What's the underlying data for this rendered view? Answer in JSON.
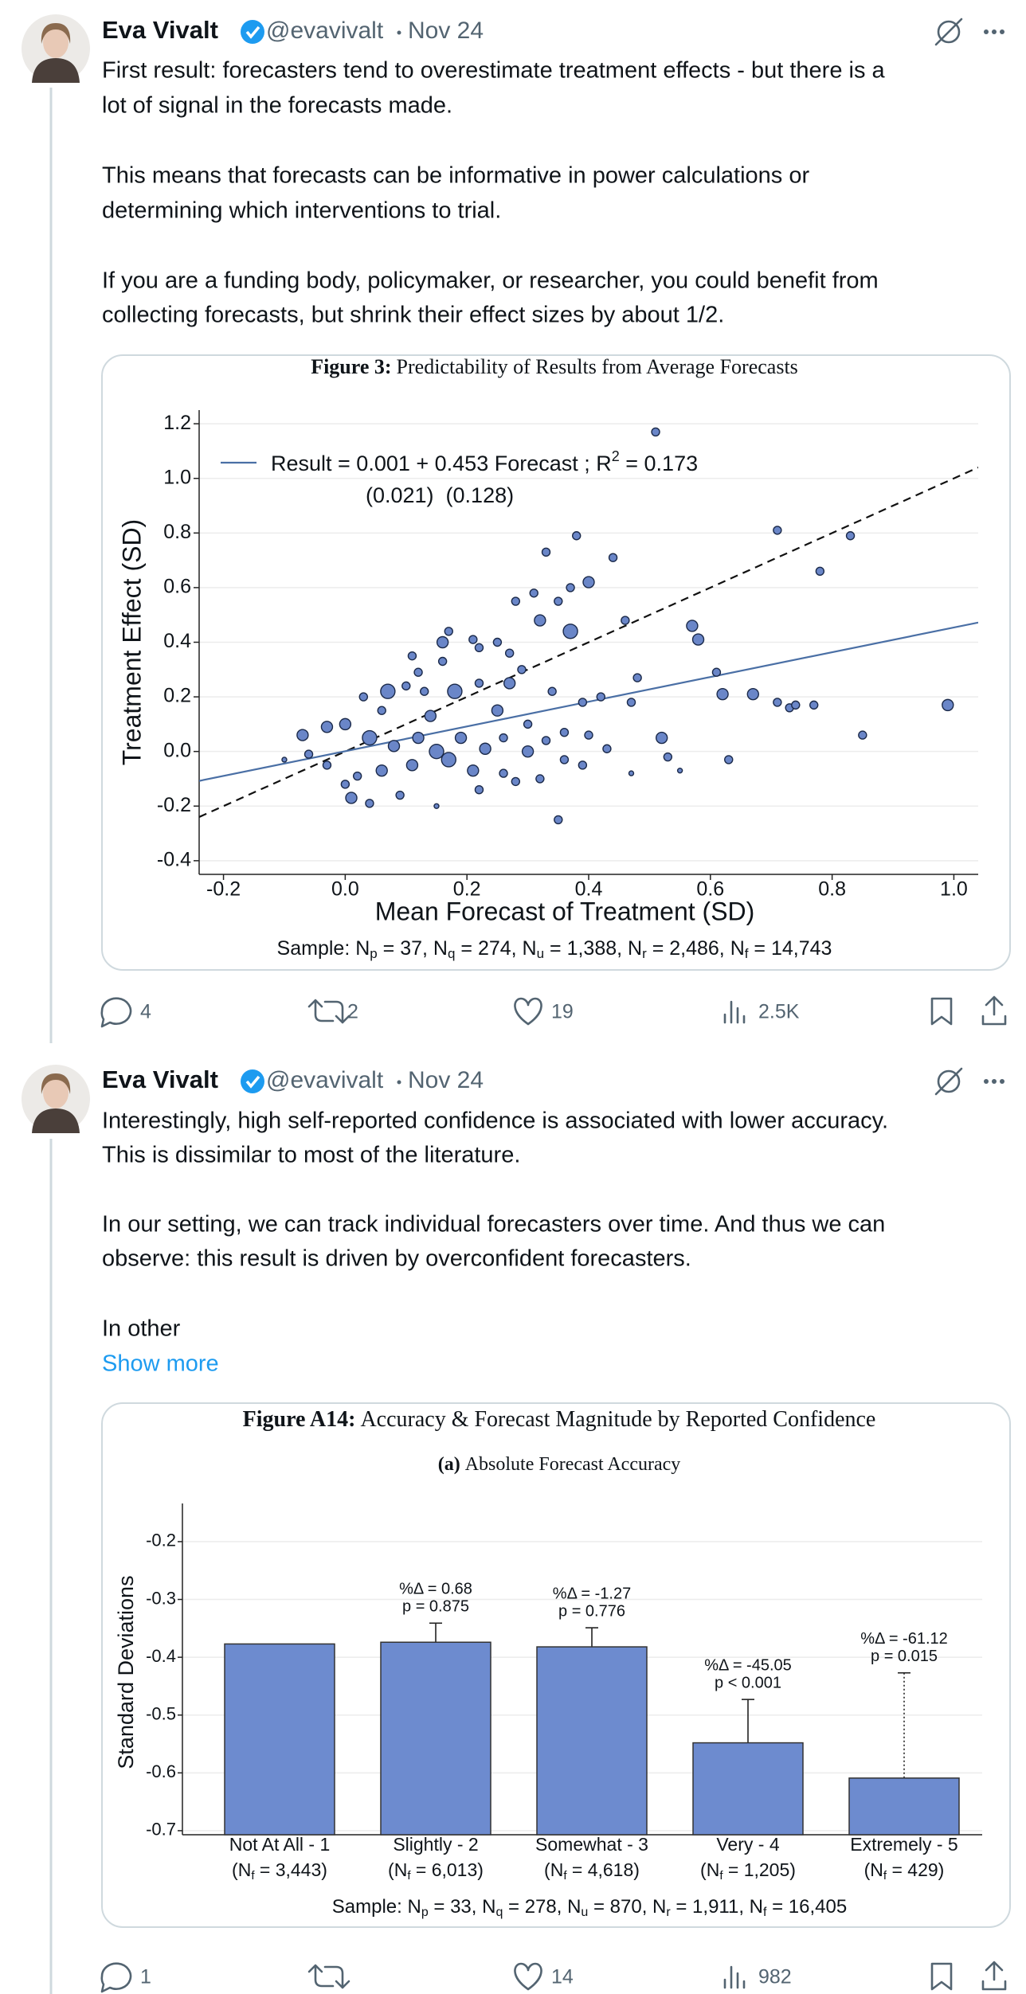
{
  "tweets": [
    {
      "name": "Eva Vivalt",
      "handle": "@evavivalt",
      "date": "Nov 24",
      "text_lines": [
        "First result: forecasters tend to overestimate treatment effects - but there is a",
        "lot of signal in the forecasts made.",
        "This means that forecasts can be informative in power calculations or",
        "determining which interventions to trial.",
        "If you are a funding body, policymaker, or researcher, you could benefit from",
        "collecting forecasts, but shrink their effect sizes by about 1/2."
      ],
      "stats": {
        "replies": 4,
        "retweets": 2,
        "likes": 19,
        "views": "2.5K"
      }
    },
    {
      "name": "Eva Vivalt",
      "handle": "@evavivalt",
      "date": "Nov 24",
      "text_lines": [
        "Interestingly, high self-reported confidence is associated with lower accuracy.",
        "This is dissimilar to most of the literature.",
        "In our setting, we can track individual forecasters over time. And thus we can",
        "observe: this result is driven by overconfident forecasters.",
        "In other"
      ],
      "show_more": "Show more",
      "stats": {
        "replies": 1,
        "likes": 14,
        "views": 982
      }
    }
  ],
  "chart_data": [
    {
      "type": "scatter",
      "title_label": "Figure 3:",
      "title": "Predictability of Results from Average Forecasts",
      "x_label": "Mean Forecast of Treatment (SD)",
      "y_label": "Treatment Effect (SD)",
      "annotation_line1": [
        "Result = 0.001 + 0.453 Forecast ; R",
        "2",
        " = 0.173"
      ],
      "annotation_line2": "(0.021)  (0.128)",
      "sample": [
        "Sample: N",
        "p",
        " = 37, N",
        "q",
        " = 274, N",
        "u",
        " = 1,388, N",
        "r",
        " = 2,486, N",
        "f",
        " = 14,743"
      ],
      "fit_line": {
        "intercept": 0.001,
        "slope": 0.453,
        "color": "#4a6fa5"
      },
      "reference_line": {
        "intercept": 0,
        "slope": 1,
        "color": "#111111"
      },
      "color": "#6a86c8",
      "xlim": [
        -0.24,
        1.04
      ],
      "ylim": [
        -0.45,
        1.25
      ],
      "xticks": [
        -0.2,
        {
          "value": 0,
          "label": "0.0"
        },
        0.2,
        0.4,
        0.6,
        0.8,
        {
          "value": 1,
          "label": "1.0"
        }
      ],
      "yticks": [
        -0.4,
        -0.2,
        {
          "value": 0,
          "label": "0.0"
        },
        0.2,
        0.4,
        0.6,
        0.8,
        {
          "value": 1,
          "label": "1.0"
        },
        1.2
      ],
      "grid": true,
      "x": [
        0.51,
        0.33,
        0.38,
        0.44,
        0.71,
        0.83,
        0.78,
        0.4,
        0.31,
        0.35,
        0.28,
        0.37,
        0.32,
        0.37,
        0.46,
        0.57,
        0.58,
        0.17,
        0.16,
        0.22,
        0.21,
        0.25,
        0.27,
        0.29,
        0.16,
        0.11,
        0.12,
        0.1,
        0.07,
        0.13,
        0.18,
        0.22,
        0.27,
        0.34,
        0.39,
        0.42,
        0.47,
        0.48,
        0.61,
        0.62,
        0.67,
        0.71,
        0.73,
        0.74,
        0.77,
        0.99,
        0.85,
        0.03,
        0.06,
        -0.03,
        -0.07,
        0.0,
        0.04,
        0.08,
        0.12,
        0.15,
        0.19,
        0.23,
        0.26,
        0.3,
        0.33,
        0.36,
        0.4,
        0.43,
        0.52,
        0.53,
        0.63,
        0.55,
        0.47,
        0.39,
        0.32,
        0.26,
        0.21,
        0.17,
        0.11,
        0.06,
        0.02,
        -0.03,
        -0.1,
        -0.06,
        0.0,
        0.01,
        0.04,
        0.09,
        0.15,
        0.22,
        0.28,
        0.35,
        0.14,
        0.25,
        0.3,
        0.36
      ],
      "values": [
        1.17,
        0.73,
        0.79,
        0.71,
        0.81,
        0.79,
        0.66,
        0.62,
        0.58,
        0.55,
        0.55,
        0.6,
        0.48,
        0.44,
        0.48,
        0.46,
        0.41,
        0.44,
        0.4,
        0.38,
        0.41,
        0.4,
        0.36,
        0.3,
        0.33,
        0.35,
        0.29,
        0.24,
        0.22,
        0.22,
        0.22,
        0.25,
        0.25,
        0.22,
        0.18,
        0.2,
        0.18,
        0.27,
        0.29,
        0.21,
        0.21,
        0.18,
        0.16,
        0.17,
        0.17,
        0.17,
        0.06,
        0.2,
        0.15,
        0.09,
        0.06,
        0.1,
        0.05,
        0.02,
        0.05,
        0.0,
        0.05,
        0.01,
        0.05,
        0.0,
        0.04,
        -0.03,
        0.06,
        0.01,
        0.05,
        -0.02,
        -0.03,
        -0.07,
        -0.08,
        -0.05,
        -0.1,
        -0.08,
        -0.07,
        -0.03,
        -0.05,
        -0.07,
        -0.09,
        -0.05,
        -0.03,
        -0.01,
        -0.12,
        -0.17,
        -0.19,
        -0.16,
        -0.2,
        -0.14,
        -0.11,
        -0.25,
        0.13,
        0.15,
        0.1,
        0.07
      ],
      "sizes": [
        2,
        2,
        2,
        2,
        2,
        2,
        2,
        3,
        2,
        2,
        2,
        2,
        3,
        4,
        2,
        3,
        3,
        2,
        3,
        2,
        2,
        2,
        2,
        2,
        2,
        2,
        2,
        2,
        4,
        2,
        4,
        2,
        3,
        2,
        2,
        2,
        2,
        2,
        2,
        3,
        3,
        2,
        2,
        2,
        2,
        3,
        2,
        2,
        2,
        3,
        3,
        3,
        4,
        3,
        3,
        4,
        3,
        3,
        2,
        3,
        2,
        2,
        2,
        2,
        3,
        2,
        2,
        1,
        1,
        2,
        2,
        2,
        3,
        4,
        3,
        3,
        2,
        2,
        1,
        2,
        2,
        3,
        2,
        2,
        1,
        2,
        2,
        2,
        3,
        3,
        2,
        2
      ]
    },
    {
      "type": "bar",
      "title_label": "Figure A14:",
      "title": "Accuracy & Forecast Magnitude by Reported Confidence",
      "subtitle_label": "(a)",
      "subtitle": "Absolute Forecast Accuracy",
      "y_label": "Standard Deviations",
      "sample": [
        "Sample: N",
        "p",
        " = 33, N",
        "q",
        " = 278, N",
        "u",
        " = 870, N",
        "r",
        " = 1,911, N",
        "f",
        " = 16,405"
      ],
      "categories": [
        "Not At All - 1",
        "Slightly - 2",
        "Somewhat - 3",
        "Very - 4",
        "Extremely - 5"
      ],
      "category_notes": [
        [
          "(N",
          "f",
          " = 3,443)"
        ],
        [
          "(N",
          "f",
          " = 6,013)"
        ],
        [
          "(N",
          "f",
          " = 4,618)"
        ],
        [
          "(N",
          "f",
          " = 1,205)"
        ],
        [
          "(N",
          "f",
          " = 429)"
        ]
      ],
      "values": [
        -0.377,
        -0.374,
        -0.382,
        -0.548,
        -0.609
      ],
      "errors": [
        null,
        0.033,
        0.033,
        0.075,
        0.182
      ],
      "error_dotted": [
        false,
        false,
        false,
        false,
        true
      ],
      "annotations": [
        null,
        [
          "%Δ = 0.68",
          "p = 0.875"
        ],
        [
          "%Δ = -1.27",
          "p = 0.776"
        ],
        [
          "%Δ = -45.05",
          "p < 0.001"
        ],
        [
          "%Δ = -61.12",
          "p = 0.015"
        ]
      ],
      "color": "#6d8bcf",
      "ylim": [
        -0.707,
        -0.145
      ],
      "yticks": [
        -0.7,
        -0.6,
        -0.5,
        -0.4,
        -0.3,
        -0.2
      ],
      "grid": true
    }
  ]
}
